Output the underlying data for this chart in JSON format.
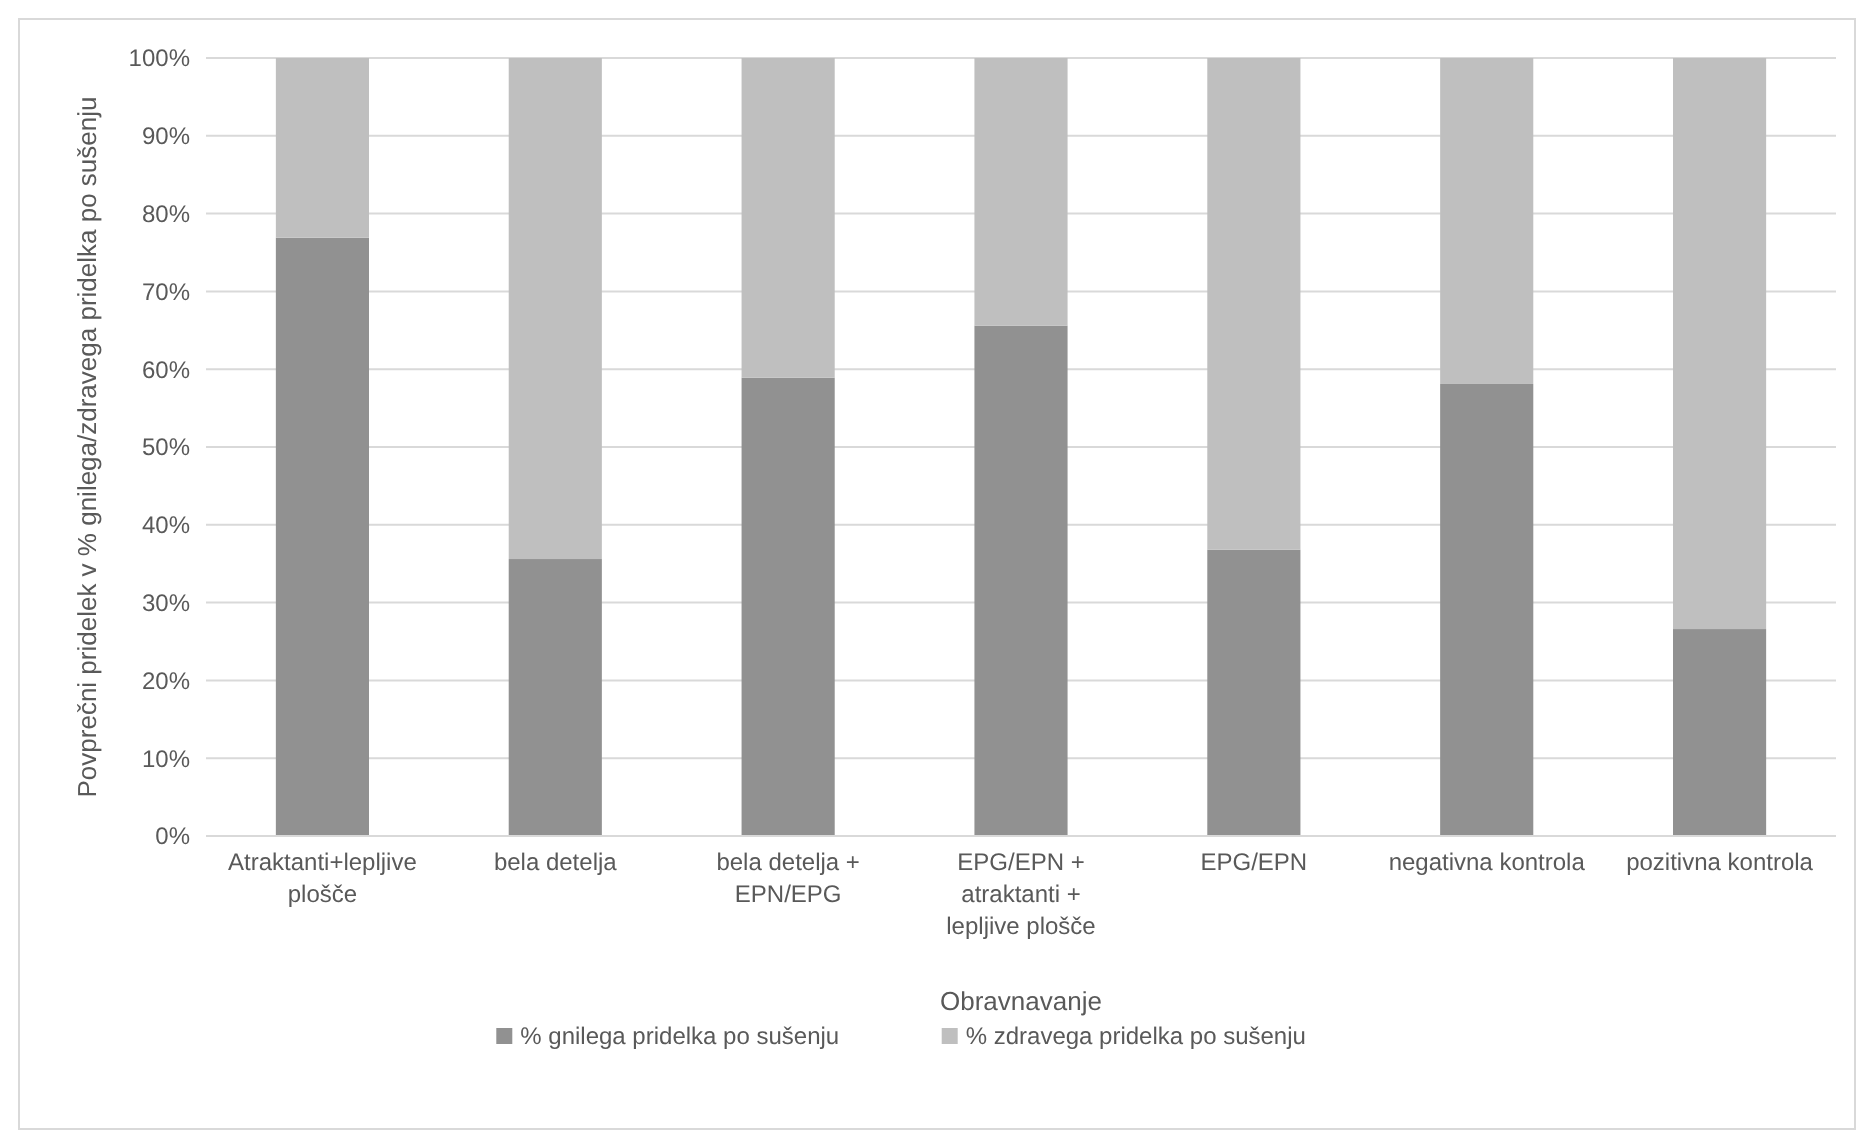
{
  "chart_data": {
    "type": "bar",
    "stacked": true,
    "xlabel": "Obravnavanje",
    "ylabel": "Povprečni pridelek v % gnilega/zdravega pridelka po sušenju",
    "categories": [
      "Atraktanti+lepljive plošče",
      "bela detelja",
      "bela detelja + EPN/EPG",
      "EPG/EPN + atraktanti + lepljive plošče",
      "EPG/EPN",
      "negativna kontrola",
      "pozitivna kontrola"
    ],
    "series": [
      {
        "name": "% gnilega pridelka po sušenju",
        "color": "#919191",
        "values": [
          76.9,
          35.6,
          58.9,
          65.6,
          36.8,
          58.1,
          26.6
        ]
      },
      {
        "name": "% zdravega pridelka po sušenju",
        "color": "#bfbfbf",
        "values": [
          23.1,
          64.4,
          41.1,
          34.4,
          63.2,
          41.9,
          73.4
        ]
      }
    ],
    "ylim": [
      0,
      100
    ],
    "yticks": [
      {
        "value": 0,
        "label": "0%"
      },
      {
        "value": 10,
        "label": "10%"
      },
      {
        "value": 20,
        "label": "20%"
      },
      {
        "value": 30,
        "label": "30%"
      },
      {
        "value": 40,
        "label": "40%"
      },
      {
        "value": 50,
        "label": "50%"
      },
      {
        "value": 60,
        "label": "60%"
      },
      {
        "value": 70,
        "label": "70%"
      },
      {
        "value": 80,
        "label": "80%"
      },
      {
        "value": 90,
        "label": "90%"
      },
      {
        "value": 100,
        "label": "100%"
      }
    ],
    "grid": "y",
    "legend": "bottom"
  }
}
